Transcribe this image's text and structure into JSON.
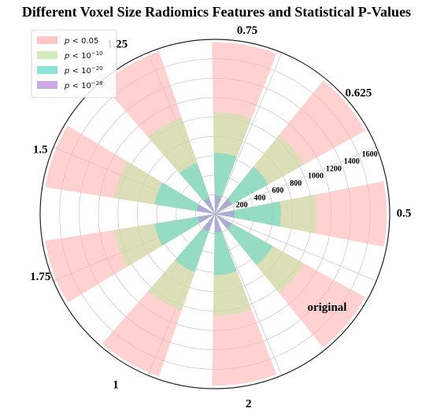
{
  "chart_data": {
    "type": "polar-bar",
    "title": "Different Voxel Size Radiomics Features and Statistical P-Values",
    "categories": [
      "0.5",
      "0.625",
      "0.75",
      "1.25",
      "1.5",
      "1.75",
      "1",
      "2",
      "original"
    ],
    "angles_deg": [
      0,
      40,
      80,
      120,
      160,
      200,
      240,
      280,
      320
    ],
    "radial_ticks": [
      200,
      400,
      600,
      800,
      1000,
      1200,
      1400,
      1600
    ],
    "rlim": [
      0,
      1800
    ],
    "grid": true,
    "legend_position": "top-left",
    "series": [
      {
        "name": "p < 0.05",
        "label_main": "p",
        "label_rest": " < 0.05",
        "color": "#ffb3b3",
        "values": [
          1770,
          1770,
          1770,
          1770,
          1770,
          1770,
          1770,
          1770,
          1770
        ]
      },
      {
        "name": "p < 10^-10",
        "label_main": "p",
        "label_rest": " < 10",
        "label_sup": "−10",
        "color": "#c5e6a6",
        "values": [
          1050,
          1050,
          1050,
          1050,
          1050,
          1050,
          1050,
          1050,
          1050
        ]
      },
      {
        "name": "p < 10^-20",
        "label_main": "p",
        "label_rest": " < 10",
        "label_sup": "−20",
        "color": "#66dbc8",
        "values": [
          680,
          630,
          630,
          560,
          630,
          630,
          630,
          630,
          680
        ]
      },
      {
        "name": "p < 10^-28",
        "label_main": "p",
        "label_rest": " < 10",
        "label_sup": "−28",
        "color": "#b98ce0",
        "values": [
          200,
          200,
          190,
          180,
          190,
          180,
          190,
          190,
          200
        ]
      }
    ]
  }
}
